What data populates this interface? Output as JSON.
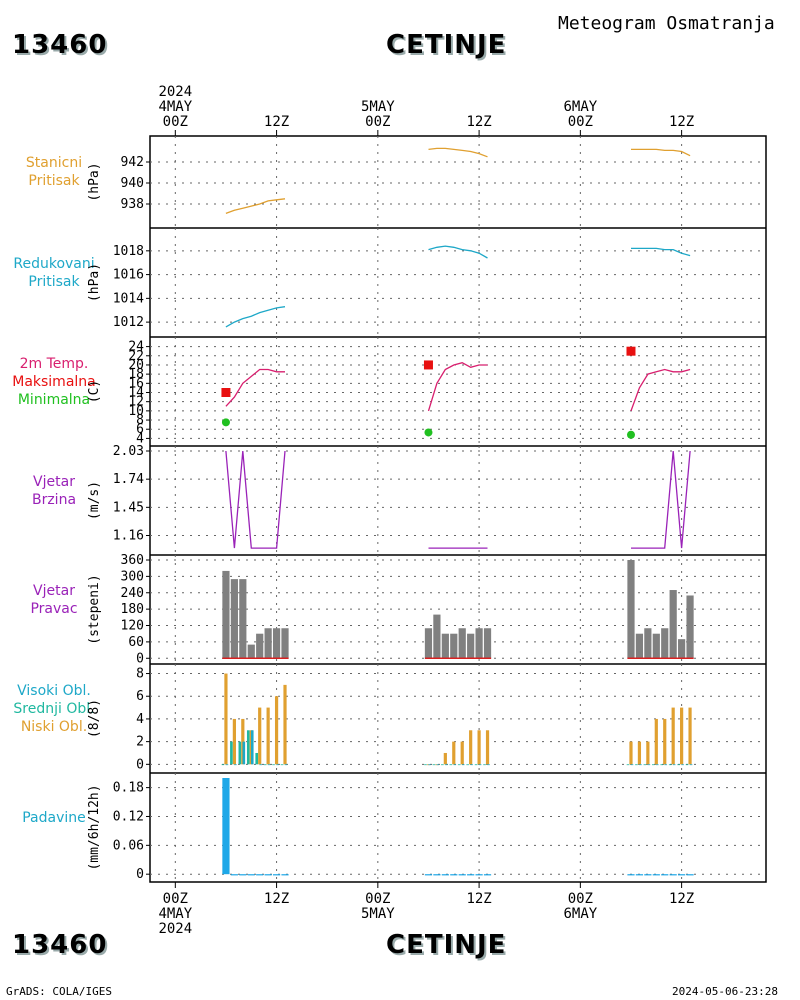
{
  "header": {
    "station_id": "13460",
    "station_name": "CETINJE",
    "subtitle": "Meteogram Osmatranja"
  },
  "footer": {
    "left": "GrADS: COLA/IGES",
    "right": "2024-05-06-23:28"
  },
  "time_axis": {
    "top_labels": [
      {
        "lines": [
          "2024",
          "4MAY",
          "00Z"
        ],
        "hour": 0
      },
      {
        "lines": [
          "12Z"
        ],
        "hour": 12
      },
      {
        "lines": [
          "5MAY",
          "00Z"
        ],
        "hour": 24
      },
      {
        "lines": [
          "12Z"
        ],
        "hour": 36
      },
      {
        "lines": [
          "6MAY",
          "00Z"
        ],
        "hour": 48
      },
      {
        "lines": [
          "12Z"
        ],
        "hour": 60
      }
    ],
    "bottom_labels": [
      {
        "lines": [
          "00Z",
          "4MAY",
          "2024"
        ],
        "hour": 0
      },
      {
        "lines": [
          "12Z"
        ],
        "hour": 12
      },
      {
        "lines": [
          "00Z",
          "5MAY"
        ],
        "hour": 24
      },
      {
        "lines": [
          "12Z"
        ],
        "hour": 36
      },
      {
        "lines": [
          "00Z",
          "6MAY"
        ],
        "hour": 48
      },
      {
        "lines": [
          "12Z"
        ],
        "hour": 60
      }
    ],
    "range_hours": [
      -3,
      70
    ]
  },
  "panels": [
    {
      "key": "pressure",
      "labels": [
        {
          "text": "Stanicni",
          "color": "#e0a030"
        },
        {
          "text": "Pritisak",
          "color": "#e0a030"
        }
      ],
      "unit": "(hPa)"
    },
    {
      "key": "slp",
      "labels": [
        {
          "text": "Redukovani",
          "color": "#1ea8c8"
        },
        {
          "text": "Pritisak",
          "color": "#1ea8c8"
        }
      ],
      "unit": "(hPa)"
    },
    {
      "key": "temp",
      "labels": [
        {
          "text": "2m Temp.",
          "color": "#d81e6e"
        },
        {
          "text": "Maksimalna",
          "color": "#e81010"
        },
        {
          "text": "Minimalna",
          "color": "#20c020"
        }
      ],
      "unit": "(C)"
    },
    {
      "key": "wspd",
      "labels": [
        {
          "text": "Vjetar",
          "color": "#9a22b8"
        },
        {
          "text": "Brzina",
          "color": "#9a22b8"
        }
      ],
      "unit": "(m/s)"
    },
    {
      "key": "wdir",
      "labels": [
        {
          "text": "Vjetar",
          "color": "#9a22b8"
        },
        {
          "text": "Pravac",
          "color": "#9a22b8"
        }
      ],
      "unit": "(stepeni)"
    },
    {
      "key": "cloud",
      "labels": [
        {
          "text": "Visoki Obl.",
          "color": "#1ea8c8"
        },
        {
          "text": "Srednji Obl.",
          "color": "#20b8a0"
        },
        {
          "text": "Niski Obl.",
          "color": "#e0a030"
        }
      ],
      "unit": "(8/8)"
    },
    {
      "key": "precip",
      "labels": [
        {
          "text": "Padavine",
          "color": "#1ea8c8"
        }
      ],
      "unit": "(mm/6h/12h)"
    }
  ],
  "chart_data": [
    {
      "type": "line",
      "key": "pressure",
      "ylabel": "(hPa)",
      "ylim": [
        936,
        944
      ],
      "yticks": [
        "938",
        "940",
        "942"
      ],
      "ytick_values": [
        938,
        940,
        942
      ],
      "color": "#e0a030",
      "segments": [
        {
          "x": [
            6,
            7,
            8,
            9,
            10,
            11,
            12,
            13
          ],
          "y": [
            937.1,
            937.4,
            937.6,
            937.8,
            938.0,
            938.3,
            938.4,
            938.5
          ]
        },
        {
          "x": [
            30,
            31,
            32,
            33,
            34,
            35,
            36,
            37
          ],
          "y": [
            943.2,
            943.3,
            943.3,
            943.2,
            943.1,
            943.0,
            942.8,
            942.5
          ]
        },
        {
          "x": [
            54,
            55,
            56,
            57,
            58,
            59,
            60,
            61
          ],
          "y": [
            943.2,
            943.2,
            943.2,
            943.2,
            943.1,
            943.1,
            943.0,
            942.6
          ]
        }
      ]
    },
    {
      "type": "line",
      "key": "slp",
      "ylabel": "(hPa)",
      "ylim": [
        1011,
        1019.5
      ],
      "yticks": [
        "1012",
        "1014",
        "1016",
        "1018"
      ],
      "ytick_values": [
        1012,
        1014,
        1016,
        1018
      ],
      "color": "#1ea8c8",
      "segments": [
        {
          "x": [
            6,
            7,
            8,
            9,
            10,
            11,
            12,
            13
          ],
          "y": [
            1011.6,
            1012.0,
            1012.3,
            1012.5,
            1012.8,
            1013.0,
            1013.2,
            1013.3
          ]
        },
        {
          "x": [
            30,
            31,
            32,
            33,
            34,
            35,
            36,
            37
          ],
          "y": [
            1018.1,
            1018.3,
            1018.4,
            1018.3,
            1018.1,
            1018.0,
            1017.8,
            1017.4
          ]
        },
        {
          "x": [
            54,
            55,
            56,
            57,
            58,
            59,
            60,
            61
          ],
          "y": [
            1018.2,
            1018.2,
            1018.2,
            1018.2,
            1018.1,
            1018.1,
            1017.8,
            1017.6
          ]
        }
      ]
    },
    {
      "type": "line",
      "key": "temp",
      "ylabel": "(C)",
      "ylim": [
        3,
        25
      ],
      "yticks": [
        "4",
        "6",
        "8",
        "10",
        "12",
        "14",
        "16",
        "18",
        "20",
        "22",
        "24"
      ],
      "ytick_values": [
        4,
        6,
        8,
        10,
        12,
        14,
        16,
        18,
        20,
        22,
        24
      ],
      "color": "#d81e6e",
      "segments": [
        {
          "x": [
            6,
            7,
            8,
            9,
            10,
            11,
            12,
            13
          ],
          "y": [
            11,
            13,
            16,
            17.5,
            19,
            19,
            18.5,
            18.5
          ]
        },
        {
          "x": [
            30,
            31,
            32,
            33,
            34,
            35,
            36,
            37
          ],
          "y": [
            10,
            16,
            19,
            20,
            20.5,
            19.5,
            20,
            20
          ]
        },
        {
          "x": [
            54,
            55,
            56,
            57,
            58,
            59,
            60,
            61
          ],
          "y": [
            10,
            15,
            18,
            18.5,
            19,
            18.5,
            18.5,
            19
          ]
        }
      ],
      "max": {
        "x": [
          6,
          30,
          54
        ],
        "y": [
          14,
          20,
          23
        ],
        "color": "#e81010"
      },
      "min": {
        "x": [
          6,
          30,
          54
        ],
        "y": [
          7.5,
          5.3,
          4.8
        ],
        "color": "#20c020"
      }
    },
    {
      "type": "line",
      "key": "wspd",
      "ylabel": "(m/s)",
      "ylim": [
        0.99,
        2.03
      ],
      "yticks": [
        "1.16",
        "1.45",
        "1.74",
        "2.03"
      ],
      "ytick_values": [
        1.16,
        1.45,
        1.74,
        2.03
      ],
      "color": "#9a22b8",
      "segments": [
        {
          "x": [
            6,
            7,
            8,
            9,
            10,
            11,
            12,
            13
          ],
          "y": [
            2.03,
            1.03,
            2.03,
            1.03,
            1.03,
            1.03,
            1.03,
            2.03
          ]
        },
        {
          "x": [
            30,
            31,
            32,
            33,
            34,
            35,
            36,
            37
          ],
          "y": [
            1.03,
            1.03,
            1.03,
            1.03,
            1.03,
            1.03,
            1.03,
            1.03
          ]
        },
        {
          "x": [
            54,
            55,
            56,
            57,
            58,
            59,
            60,
            61
          ],
          "y": [
            1.03,
            1.03,
            1.03,
            1.03,
            1.03,
            2.03,
            1.03,
            2.03
          ]
        }
      ]
    },
    {
      "type": "bar",
      "key": "wdir",
      "ylabel": "(stepeni)",
      "ylim": [
        -10,
        360
      ],
      "yticks": [
        "0",
        "60",
        "120",
        "180",
        "240",
        "300",
        "360"
      ],
      "ytick_values": [
        0,
        60,
        120,
        180,
        240,
        300,
        360
      ],
      "color": "#808080",
      "x": [
        6,
        7,
        8,
        9,
        10,
        11,
        12,
        13,
        30,
        31,
        32,
        33,
        34,
        35,
        36,
        37,
        54,
        55,
        56,
        57,
        58,
        59,
        60,
        61
      ],
      "values": [
        320,
        290,
        290,
        50,
        90,
        110,
        110,
        110,
        110,
        160,
        90,
        90,
        110,
        90,
        110,
        110,
        360,
        90,
        110,
        90,
        110,
        250,
        70,
        230
      ],
      "baseline_color": "#d82020"
    },
    {
      "type": "bar",
      "key": "cloud",
      "ylabel": "(8/8)",
      "ylim": [
        -0.5,
        8.4
      ],
      "yticks": [
        "0",
        "2",
        "4",
        "6",
        "8"
      ],
      "ytick_values": [
        0,
        2,
        4,
        6,
        8
      ],
      "x": [
        6,
        7,
        8,
        9,
        10,
        11,
        12,
        13,
        30,
        31,
        32,
        33,
        34,
        35,
        36,
        37,
        54,
        55,
        56,
        57,
        58,
        59,
        60,
        61
      ],
      "series": [
        {
          "name": "Niski Obl.",
          "color": "#e0a030",
          "values": [
            8,
            4,
            4,
            3,
            5,
            5,
            6,
            7,
            0,
            0,
            1,
            2,
            2,
            3,
            3,
            3,
            2,
            2,
            2,
            4,
            4,
            5,
            5,
            5
          ]
        },
        {
          "name": "Srednji Obl.",
          "color": "#20b8a0",
          "values": [
            0,
            2,
            2,
            3,
            1,
            0,
            0,
            0,
            0,
            0,
            0,
            0,
            0,
            0,
            0,
            0,
            0,
            0,
            0,
            0,
            0,
            0,
            0,
            0
          ]
        },
        {
          "name": "Visoki Obl.",
          "color": "#1ea8c8",
          "values": [
            0,
            0,
            2,
            3,
            0,
            0,
            0,
            0,
            0,
            0,
            0,
            0,
            0,
            0,
            0,
            0,
            0,
            0,
            0,
            0,
            0,
            0,
            0,
            0
          ]
        }
      ]
    },
    {
      "type": "bar",
      "key": "precip",
      "ylabel": "(mm/6h/12h)",
      "ylim": [
        -0.01,
        0.2
      ],
      "yticks": [
        "0",
        "0.06",
        "0.12",
        "0.18"
      ],
      "ytick_values": [
        0,
        0.06,
        0.12,
        0.18
      ],
      "color": "#1ea8e8",
      "x": [
        6,
        7,
        8,
        9,
        10,
        11,
        12,
        13,
        30,
        31,
        32,
        33,
        34,
        35,
        36,
        37,
        54,
        55,
        56,
        57,
        58,
        59,
        60,
        61
      ],
      "values": [
        0.2,
        0,
        0,
        0,
        0,
        0,
        0,
        0,
        0,
        0,
        0,
        0,
        0,
        0,
        0,
        0,
        0,
        0,
        0,
        0,
        0,
        0,
        0,
        0
      ]
    }
  ]
}
